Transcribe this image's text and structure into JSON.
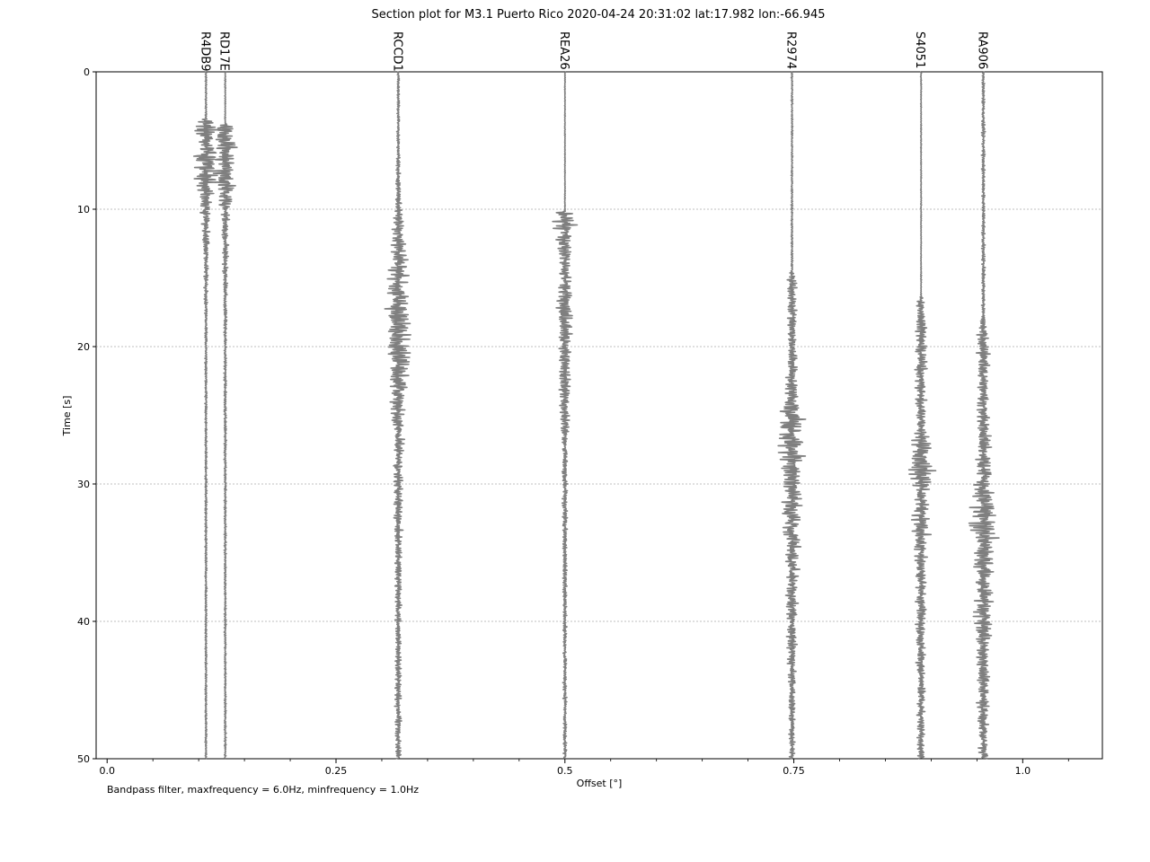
{
  "chart_data": {
    "type": "line",
    "title": "Section plot for M3.1 Puerto Rico 2020-04-24 20:31:02 lat:17.982 lon:-66.945",
    "xlabel": "Offset [°]",
    "ylabel": "Time [s]",
    "xlim": [
      -0.012,
      1.087
    ],
    "ylim": [
      50,
      0
    ],
    "y_inverted": true,
    "xticks": [
      "0.0",
      "0.25",
      "0.5",
      "0.75",
      "1.0"
    ],
    "yticks": [
      "0",
      "10",
      "20",
      "30",
      "40",
      "50"
    ],
    "grid": "horizontal dotted at y ticks",
    "footnote": "Bandpass filter, maxfrequency = 6.0Hz, minfrequency = 1.0Hz",
    "trace_color": "#7f7f7f",
    "series": [
      {
        "name": "R4DB9",
        "offset": 0.108,
        "envelope": [
          [
            0,
            0.2
          ],
          [
            3.4,
            0.2
          ],
          [
            3.8,
            4.5
          ],
          [
            5,
            2.2
          ],
          [
            7,
            3.8
          ],
          [
            8.5,
            2.0
          ],
          [
            10.5,
            1.2
          ],
          [
            14,
            0.6
          ],
          [
            20,
            0.3
          ],
          [
            50,
            0.25
          ]
        ]
      },
      {
        "name": "RD17E",
        "offset": 0.129,
        "envelope": [
          [
            0,
            0.15
          ],
          [
            3.7,
            0.15
          ],
          [
            4,
            3.0
          ],
          [
            6,
            2.8
          ],
          [
            7.3,
            3.4
          ],
          [
            9,
            2.2
          ],
          [
            11,
            1.0
          ],
          [
            15,
            0.6
          ],
          [
            20,
            0.35
          ],
          [
            50,
            0.25
          ]
        ]
      },
      {
        "name": "RCCD1",
        "offset": 0.318,
        "envelope": [
          [
            0,
            0.35
          ],
          [
            6.5,
            0.4
          ],
          [
            8,
            0.7
          ],
          [
            10,
            0.9
          ],
          [
            12.5,
            1.8
          ],
          [
            14,
            2.6
          ],
          [
            16.3,
            3.6
          ],
          [
            19.5,
            3.0
          ],
          [
            22.8,
            2.8
          ],
          [
            25,
            1.6
          ],
          [
            30,
            1.3
          ],
          [
            35,
            1.0
          ],
          [
            40,
            0.8
          ],
          [
            45.5,
            0.9
          ],
          [
            50,
            0.7
          ]
        ]
      },
      {
        "name": "REA26",
        "offset": 0.5,
        "envelope": [
          [
            0,
            0.1
          ],
          [
            10.1,
            0.1
          ],
          [
            10.3,
            3.6
          ],
          [
            12,
            2.2
          ],
          [
            14,
            1.6
          ],
          [
            17.6,
            2.6
          ],
          [
            19,
            1.8
          ],
          [
            23,
            1.4
          ],
          [
            26,
            1.0
          ],
          [
            30,
            0.7
          ],
          [
            40,
            0.5
          ],
          [
            50,
            0.45
          ]
        ]
      },
      {
        "name": "R2974",
        "offset": 0.748,
        "envelope": [
          [
            0,
            0.2
          ],
          [
            14.4,
            0.25
          ],
          [
            15,
            1.2
          ],
          [
            18,
            1.2
          ],
          [
            22,
            1.3
          ],
          [
            25.6,
            3.6
          ],
          [
            28.6,
            3.4
          ],
          [
            30,
            2.4
          ],
          [
            32.4,
            2.6
          ],
          [
            35,
            2.0
          ],
          [
            38,
            1.6
          ],
          [
            42,
            1.2
          ],
          [
            46,
            0.9
          ],
          [
            50,
            0.6
          ]
        ]
      },
      {
        "name": "S4051",
        "offset": 0.889,
        "envelope": [
          [
            0,
            0.12
          ],
          [
            16.3,
            0.12
          ],
          [
            16.7,
            1.1
          ],
          [
            19,
            1.4
          ],
          [
            22,
            1.6
          ],
          [
            26,
            1.5
          ],
          [
            28.8,
            3.8
          ],
          [
            31,
            2.2
          ],
          [
            33,
            2.5
          ],
          [
            36,
            1.6
          ],
          [
            40,
            1.4
          ],
          [
            44,
            1.2
          ],
          [
            50,
            0.9
          ]
        ]
      },
      {
        "name": "RA906",
        "offset": 0.957,
        "envelope": [
          [
            0,
            0.35
          ],
          [
            6,
            0.5
          ],
          [
            10,
            0.4
          ],
          [
            17.9,
            0.5
          ],
          [
            18.3,
            1.4
          ],
          [
            20,
            1.8
          ],
          [
            24,
            1.5
          ],
          [
            28,
            2.0
          ],
          [
            30.5,
            2.6
          ],
          [
            32.1,
            3.8
          ],
          [
            34.3,
            3.6
          ],
          [
            37,
            2.8
          ],
          [
            40,
            2.2
          ],
          [
            45,
            1.6
          ],
          [
            50,
            1.4
          ]
        ]
      }
    ]
  }
}
